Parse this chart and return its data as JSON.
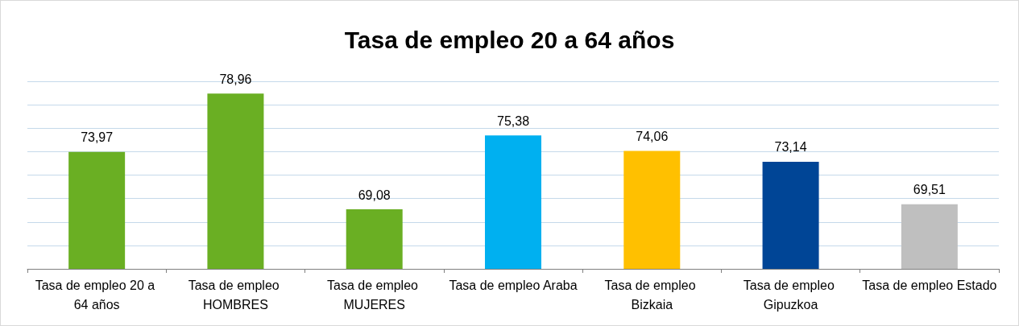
{
  "chart_data": {
    "type": "bar",
    "title": "Tasa de empleo 20 a 64 años",
    "categories": [
      "Tasa de empleo 20 a 64 años",
      "Tasa de empleo HOMBRES",
      "Tasa de empleo MUJERES",
      "Tasa de empleo Araba",
      "Tasa de empleo Bizkaia",
      "Tasa de empleo Gipuzkoa",
      "Tasa de empleo Estado"
    ],
    "values": [
      73.97,
      78.96,
      69.08,
      75.38,
      74.06,
      73.14,
      69.51
    ],
    "colors": [
      "#6aaf23",
      "#6aaf23",
      "#6aaf23",
      "#00b0f0",
      "#ffc000",
      "#004596",
      "#bfbfbf"
    ],
    "value_labels": [
      "73,97",
      "78,96",
      "69,08",
      "75,38",
      "74,06",
      "73,14",
      "69,51"
    ],
    "ylim": [
      64,
      80
    ],
    "yticks": [
      {
        "value": 64,
        "label": null
      },
      {
        "value": 66,
        "label": null
      },
      {
        "value": 68,
        "label": null
      },
      {
        "value": 70,
        "label": null
      },
      {
        "value": 72,
        "label": null
      },
      {
        "value": 74,
        "label": null
      },
      {
        "value": 76,
        "label": null
      },
      {
        "value": 78,
        "label": null
      },
      {
        "value": 80,
        "label": null
      }
    ],
    "tick_labels": "x",
    "grid": "y"
  }
}
